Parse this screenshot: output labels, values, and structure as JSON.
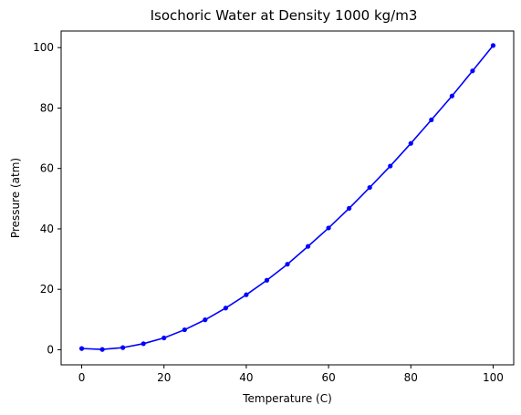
{
  "chart_data": {
    "type": "line",
    "title": "Isochoric Water at Density 1000 kg/m3",
    "xlabel": "Temperature (C)",
    "ylabel": "Pressure (atm)",
    "xlim": [
      -5,
      105
    ],
    "ylim": [
      -5,
      105.5
    ],
    "xticks": [
      0,
      20,
      40,
      60,
      80,
      100
    ],
    "yticks": [
      0,
      20,
      40,
      60,
      80,
      100
    ],
    "grid": false,
    "series": [
      {
        "color": "#0000ff",
        "marker": "circle",
        "x": [
          0,
          5,
          10,
          15,
          20,
          25,
          30,
          35,
          40,
          45,
          50,
          55,
          60,
          65,
          70,
          75,
          80,
          85,
          90,
          95,
          100
        ],
        "y": [
          0.4,
          0.1,
          0.7,
          2.0,
          3.9,
          6.6,
          9.9,
          13.8,
          18.2,
          23.0,
          28.3,
          34.2,
          40.3,
          46.8,
          53.7,
          60.8,
          68.3,
          76.1,
          84.0,
          92.3,
          100.7
        ]
      }
    ]
  }
}
